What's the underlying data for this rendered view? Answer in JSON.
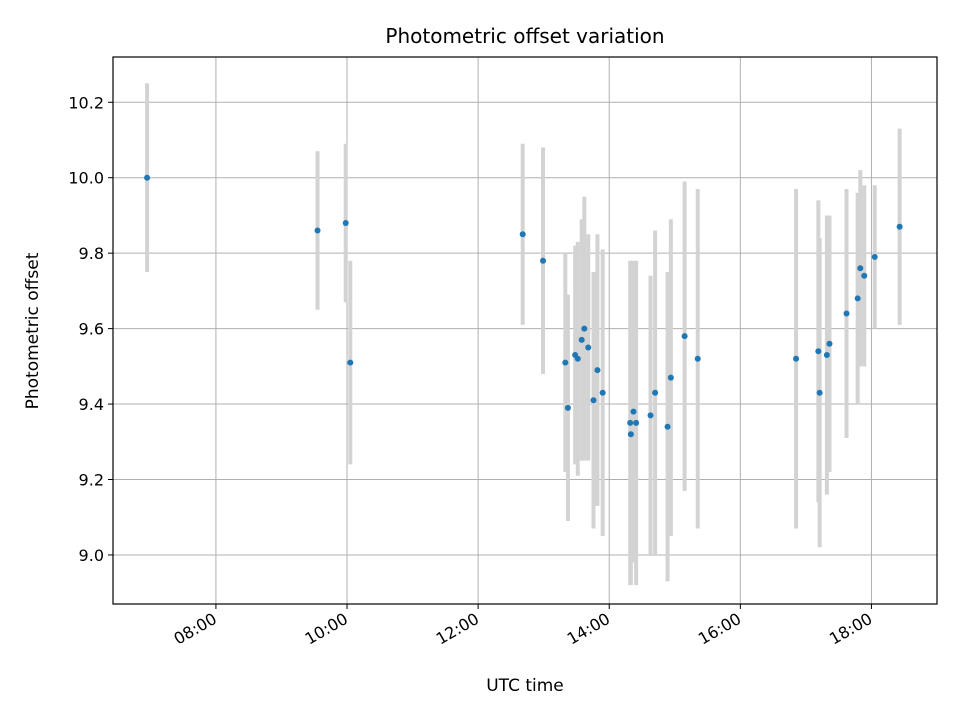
{
  "chart_data": {
    "type": "scatter",
    "title": "Photometric offset variation",
    "xlabel": "UTC time",
    "ylabel": "Photometric offset",
    "x_unit": "hours (UTC)",
    "xlim": [
      6.43,
      19.0
    ],
    "ylim": [
      8.87,
      10.32
    ],
    "grid": true,
    "x_tick_values": [
      8,
      10,
      12,
      14,
      16,
      18
    ],
    "x_ticks": [
      "08:00",
      "10:00",
      "12:00",
      "14:00",
      "16:00",
      "18:00"
    ],
    "y_tick_values": [
      9.0,
      9.2,
      9.4,
      9.6,
      9.8,
      10.0,
      10.2
    ],
    "y_ticks": [
      "9.0",
      "9.2",
      "9.4",
      "9.6",
      "9.8",
      "10.0",
      "10.2"
    ],
    "colors": {
      "point": "#1f77b4",
      "errorbar": "#d3d3d3",
      "grid": "#b0b0b0"
    },
    "points": [
      {
        "x": 6.95,
        "y": 10.0,
        "err": 0.25
      },
      {
        "x": 9.55,
        "y": 9.86,
        "err": 0.21
      },
      {
        "x": 9.98,
        "y": 9.88,
        "err": 0.21
      },
      {
        "x": 10.05,
        "y": 9.51,
        "err": 0.27
      },
      {
        "x": 12.68,
        "y": 9.85,
        "err": 0.24
      },
      {
        "x": 12.99,
        "y": 9.78,
        "err": 0.3
      },
      {
        "x": 13.33,
        "y": 9.51,
        "err": 0.29
      },
      {
        "x": 13.37,
        "y": 9.39,
        "err": 0.3
      },
      {
        "x": 13.48,
        "y": 9.53,
        "err": 0.29
      },
      {
        "x": 13.52,
        "y": 9.52,
        "err": 0.31
      },
      {
        "x": 13.58,
        "y": 9.57,
        "err": 0.32
      },
      {
        "x": 13.62,
        "y": 9.6,
        "err": 0.35
      },
      {
        "x": 13.68,
        "y": 9.55,
        "err": 0.3
      },
      {
        "x": 13.76,
        "y": 9.41,
        "err": 0.34
      },
      {
        "x": 13.82,
        "y": 9.49,
        "err": 0.36
      },
      {
        "x": 13.9,
        "y": 9.43,
        "err": 0.38
      },
      {
        "x": 14.32,
        "y": 9.35,
        "err": 0.43
      },
      {
        "x": 14.33,
        "y": 9.32,
        "err": 0.4
      },
      {
        "x": 14.37,
        "y": 9.38,
        "err": 0.4
      },
      {
        "x": 14.41,
        "y": 9.35,
        "err": 0.43
      },
      {
        "x": 14.63,
        "y": 9.37,
        "err": 0.37
      },
      {
        "x": 14.7,
        "y": 9.43,
        "err": 0.43
      },
      {
        "x": 14.89,
        "y": 9.34,
        "err": 0.41
      },
      {
        "x": 14.94,
        "y": 9.47,
        "err": 0.42
      },
      {
        "x": 15.15,
        "y": 9.58,
        "err": 0.41
      },
      {
        "x": 15.35,
        "y": 9.52,
        "err": 0.45
      },
      {
        "x": 16.85,
        "y": 9.52,
        "err": 0.45
      },
      {
        "x": 17.19,
        "y": 9.54,
        "err": 0.4
      },
      {
        "x": 17.21,
        "y": 9.43,
        "err": 0.41
      },
      {
        "x": 17.32,
        "y": 9.53,
        "err": 0.37
      },
      {
        "x": 17.36,
        "y": 9.56,
        "err": 0.34
      },
      {
        "x": 17.62,
        "y": 9.64,
        "err": 0.33
      },
      {
        "x": 17.79,
        "y": 9.68,
        "err": 0.28
      },
      {
        "x": 17.83,
        "y": 9.76,
        "err": 0.26
      },
      {
        "x": 17.89,
        "y": 9.74,
        "err": 0.24
      },
      {
        "x": 18.05,
        "y": 9.79,
        "err": 0.19
      },
      {
        "x": 18.43,
        "y": 9.87,
        "err": 0.26
      }
    ]
  }
}
